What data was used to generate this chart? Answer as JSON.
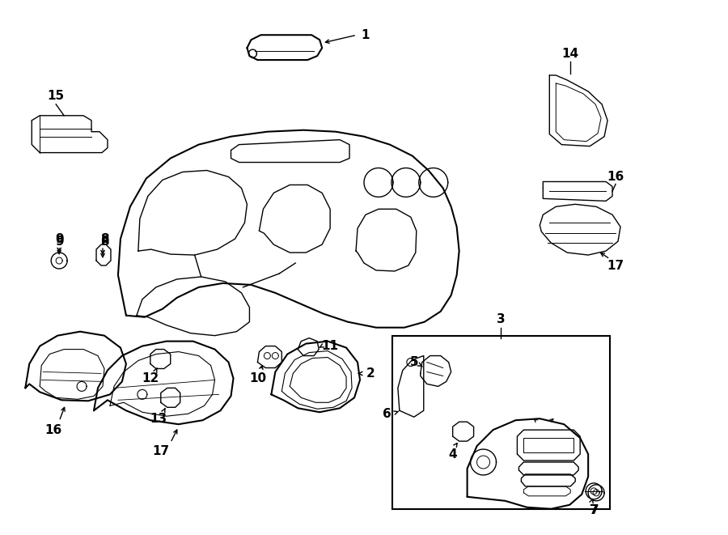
{
  "bg_color": "#ffffff",
  "line_color": "#000000",
  "figsize": [
    9.0,
    6.61
  ],
  "dpi": 100,
  "lw_main": 1.0,
  "lw_thick": 1.5,
  "font_size": 11
}
